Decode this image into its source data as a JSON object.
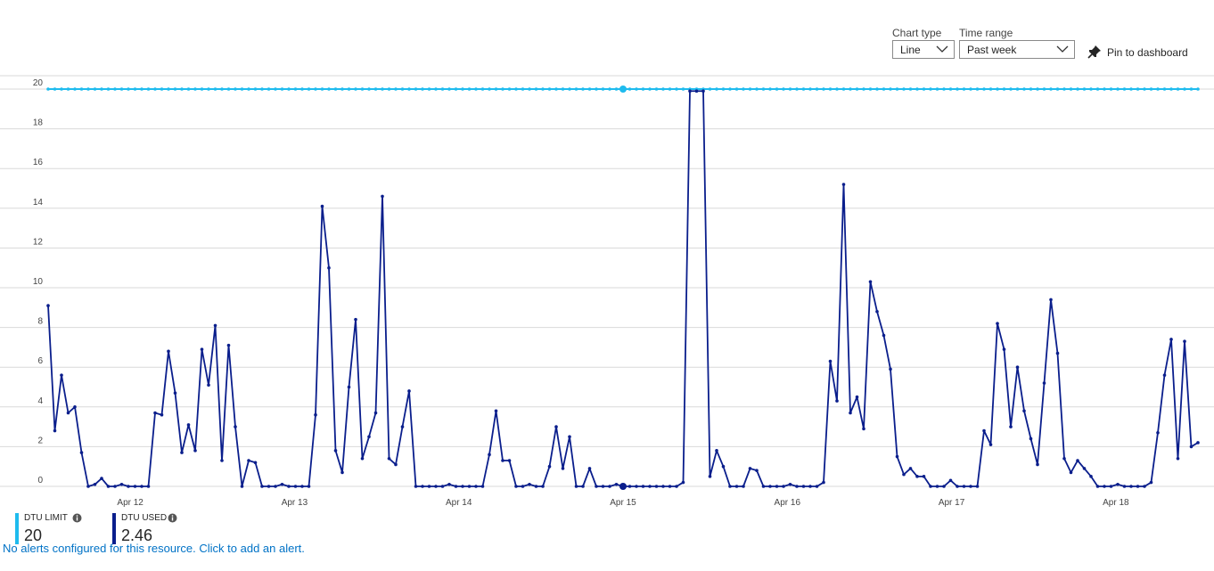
{
  "controls": {
    "chart_type_label": "Chart type",
    "chart_type_value": "Line",
    "time_range_label": "Time range",
    "time_range_value": "Past week",
    "pin_label": "Pin to dashboard"
  },
  "legend": [
    {
      "name": "DTU LIMIT",
      "value": "20",
      "color": "#1ebbee"
    },
    {
      "name": "DTU USED",
      "value": "2.46",
      "color": "#0a1e8c"
    }
  ],
  "alert_text": "No alerts configured for this resource. Click to add an alert.",
  "icons": {
    "chevron": "chevron-down-icon",
    "pin": "pin-icon",
    "info": "info-icon"
  },
  "colors": {
    "limit": "#1ebbee",
    "used": "#0a1e8c",
    "grid": "#d9d9d9",
    "link": "#0072c6"
  },
  "chart_data": {
    "type": "line",
    "title": "",
    "xlabel": "",
    "ylabel": "",
    "ylim": [
      0,
      20
    ],
    "yticks": [
      0,
      2,
      4,
      6,
      8,
      10,
      12,
      14,
      16,
      18,
      20
    ],
    "xlim_days": [
      "Apr 11",
      "Apr 18"
    ],
    "xtick_labels": [
      "Apr 12",
      "Apr 13",
      "Apr 14",
      "Apr 15",
      "Apr 16",
      "Apr 17",
      "Apr 18"
    ],
    "grid": true,
    "legend_position": "bottom-left",
    "series": [
      {
        "name": "DTU LIMIT",
        "constant": 20
      },
      {
        "name": "DTU USED",
        "values": [
          9.1,
          2.8,
          5.6,
          3.7,
          4.0,
          1.7,
          0,
          0.1,
          0.4,
          0,
          0,
          0.1,
          0,
          0,
          0,
          0,
          3.7,
          3.6,
          6.8,
          4.7,
          1.7,
          3.1,
          1.8,
          6.9,
          5.1,
          8.1,
          1.3,
          7.1,
          3.0,
          0,
          1.3,
          1.2,
          0,
          0,
          0,
          0.1,
          0,
          0,
          0,
          0,
          3.6,
          14.1,
          11.0,
          1.8,
          0.7,
          5.0,
          8.4,
          1.4,
          2.5,
          3.7,
          14.6,
          1.4,
          1.1,
          3.0,
          4.8,
          0,
          0,
          0,
          0,
          0,
          0.1,
          0,
          0,
          0,
          0,
          0,
          1.6,
          3.8,
          1.3,
          1.3,
          0,
          0,
          0.1,
          0,
          0,
          1.0,
          3.0,
          0.9,
          2.5,
          0,
          0,
          0.9,
          0,
          0,
          0,
          0.1,
          0,
          0,
          0,
          0,
          0,
          0,
          0,
          0,
          0,
          0.2,
          19.9,
          19.9,
          19.9,
          0.5,
          1.8,
          1.0,
          0,
          0,
          0,
          0.9,
          0.8,
          0,
          0,
          0,
          0,
          0.1,
          0,
          0,
          0,
          0,
          0.2,
          6.3,
          4.3,
          15.2,
          3.7,
          4.5,
          2.9,
          10.3,
          8.8,
          7.6,
          5.9,
          1.5,
          0.6,
          0.9,
          0.5,
          0.5,
          0,
          0,
          0,
          0.3,
          0,
          0,
          0,
          0,
          2.8,
          2.1,
          8.2,
          6.9,
          3.0,
          6.0,
          3.8,
          2.4,
          1.1,
          5.2,
          9.4,
          6.7,
          1.4,
          0.7,
          1.3,
          0.9,
          0.5,
          0,
          0,
          0,
          0.1,
          0,
          0,
          0,
          0,
          0.2,
          2.7,
          5.6,
          7.4,
          1.4,
          7.3,
          2.0,
          2.2
        ]
      }
    ]
  }
}
